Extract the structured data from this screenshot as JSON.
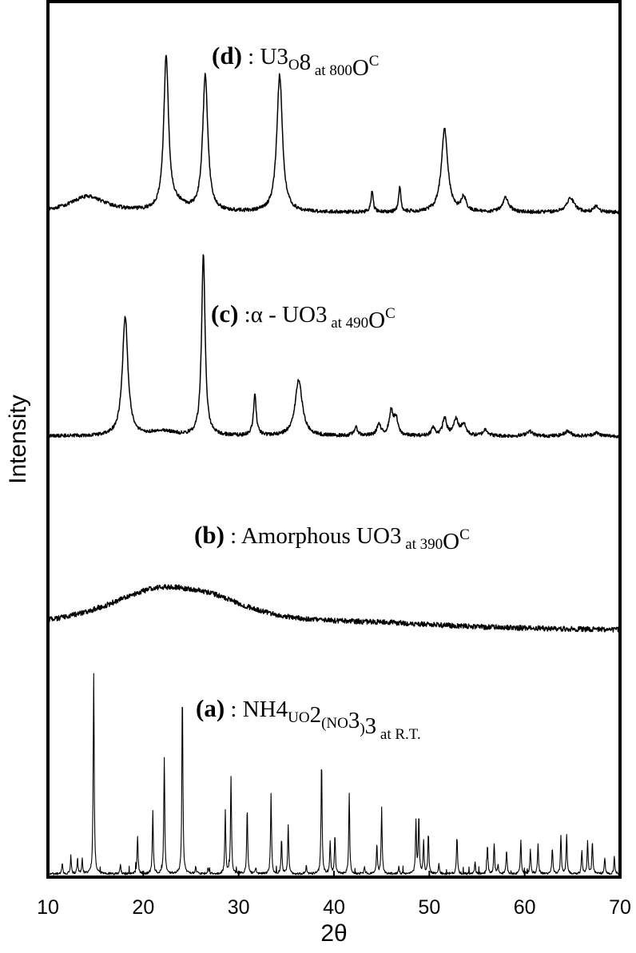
{
  "chart_data": {
    "type": "line",
    "xlabel": "2θ",
    "ylabel": "Intensity",
    "xlim": [
      10,
      70
    ],
    "xticks": [
      10,
      20,
      30,
      40,
      50,
      60,
      70
    ],
    "grid": false,
    "legend": "none",
    "series": [
      {
        "name": "(d) : U3O8 at 800°C",
        "label_letter": "(d)",
        "label_parts": [
          " : U",
          "3",
          "O",
          "8",
          " at 800",
          "O",
          "C"
        ],
        "style": "pattern",
        "baseline": 266,
        "amplitude": 1,
        "noise": 2.2,
        "peaks": [
          [
            22.4,
            192,
            0.3
          ],
          [
            26.5,
            172,
            0.32
          ],
          [
            34.3,
            172,
            0.35
          ],
          [
            44.0,
            26,
            0.14
          ],
          [
            46.9,
            30,
            0.14
          ],
          [
            51.6,
            104,
            0.4
          ],
          [
            53.6,
            18,
            0.3
          ],
          [
            58.0,
            18,
            0.4
          ],
          [
            64.8,
            18,
            0.5
          ],
          [
            67.5,
            8,
            0.3
          ],
          [
            14.2,
            20,
            2.2
          ],
          [
            23.6,
            8,
            1.0
          ]
        ]
      },
      {
        "name": "(c) : α - UO3 at 490°C",
        "label_letter": "(c)",
        "label_parts": [
          " :α - UO",
          "3",
          " at 490",
          "O",
          "C"
        ],
        "style": "pattern",
        "baseline": 546,
        "amplitude": 1,
        "noise": 2.2,
        "peaks": [
          [
            18.1,
            148,
            0.35
          ],
          [
            26.3,
            228,
            0.22
          ],
          [
            31.7,
            50,
            0.18
          ],
          [
            36.3,
            70,
            0.45
          ],
          [
            42.3,
            10,
            0.25
          ],
          [
            44.7,
            14,
            0.25
          ],
          [
            46.0,
            30,
            0.25
          ],
          [
            46.5,
            20,
            0.25
          ],
          [
            50.4,
            10,
            0.25
          ],
          [
            51.6,
            22,
            0.25
          ],
          [
            52.8,
            20,
            0.3
          ],
          [
            53.6,
            14,
            0.3
          ],
          [
            55.9,
            8,
            0.3
          ],
          [
            60.5,
            6,
            0.4
          ],
          [
            64.5,
            6,
            0.4
          ],
          [
            67.5,
            4,
            0.4
          ],
          [
            22.0,
            6,
            1.5
          ]
        ]
      },
      {
        "name": "(b) : Amorphous UO3 at 390°C",
        "label_letter": "(b)",
        "label_parts": [
          " : Amorphous UO",
          "3",
          " at 390",
          "O",
          "C"
        ],
        "style": "pattern",
        "baseline": 790,
        "amplitude": 1,
        "noise": 3.2,
        "peaks": [
          [
            21.5,
            46,
            7.0
          ],
          [
            27.5,
            18,
            5.0
          ],
          [
            45.0,
            6,
            10.0
          ]
        ]
      },
      {
        "name": "(a) : NH4UO2(NO3)3 at R.T.",
        "label_letter": "(a)",
        "label_parts": [
          " : NH",
          "4",
          "UO",
          "2",
          "(NO",
          "3",
          ")",
          "3",
          " at R.T."
        ],
        "style": "sticks",
        "baseline": 1094,
        "amplitude": 1,
        "noise": 1.5,
        "peaks": [
          [
            14.8,
            250,
            0.06
          ],
          [
            19.4,
            48,
            0.06
          ],
          [
            21.0,
            80,
            0.06
          ],
          [
            22.2,
            145,
            0.06
          ],
          [
            24.1,
            232,
            0.06
          ],
          [
            28.6,
            78,
            0.06
          ],
          [
            29.2,
            122,
            0.06
          ],
          [
            30.9,
            84,
            0.06
          ],
          [
            33.4,
            100,
            0.06
          ],
          [
            34.5,
            44,
            0.06
          ],
          [
            35.2,
            60,
            0.06
          ],
          [
            38.7,
            145,
            0.06
          ],
          [
            39.6,
            40,
            0.06
          ],
          [
            40.1,
            50,
            0.06
          ],
          [
            41.6,
            100,
            0.06
          ],
          [
            44.5,
            38,
            0.06
          ],
          [
            45.0,
            84,
            0.06
          ],
          [
            48.6,
            66,
            0.06
          ],
          [
            48.9,
            74,
            0.06
          ],
          [
            49.4,
            40,
            0.06
          ],
          [
            49.9,
            52,
            0.06
          ],
          [
            52.9,
            48,
            0.06
          ],
          [
            56.1,
            36,
            0.06
          ],
          [
            56.8,
            38,
            0.06
          ],
          [
            58.1,
            30,
            0.06
          ],
          [
            59.6,
            42,
            0.06
          ],
          [
            60.6,
            30,
            0.06
          ],
          [
            61.4,
            36,
            0.06
          ],
          [
            62.9,
            34,
            0.06
          ],
          [
            63.8,
            48,
            0.06
          ],
          [
            64.4,
            50,
            0.06
          ],
          [
            66.0,
            30,
            0.06
          ],
          [
            66.6,
            40,
            0.06
          ],
          [
            67.1,
            42,
            0.06
          ],
          [
            68.4,
            20,
            0.06
          ],
          [
            69.4,
            22,
            0.06
          ],
          [
            11.5,
            14,
            0.06
          ],
          [
            12.4,
            22,
            0.06
          ],
          [
            13.1,
            20,
            0.06
          ],
          [
            13.6,
            18,
            0.06
          ],
          [
            17.6,
            12,
            0.06
          ],
          [
            25.5,
            10,
            0.06
          ],
          [
            26.8,
            8,
            0.06
          ],
          [
            31.8,
            8,
            0.06
          ],
          [
            37.1,
            10,
            0.06
          ],
          [
            43.2,
            10,
            0.06
          ],
          [
            46.8,
            8,
            0.06
          ],
          [
            51.0,
            12,
            0.06
          ],
          [
            54.8,
            14,
            0.06
          ],
          [
            57.2,
            12,
            0.06
          ]
        ]
      }
    ]
  }
}
